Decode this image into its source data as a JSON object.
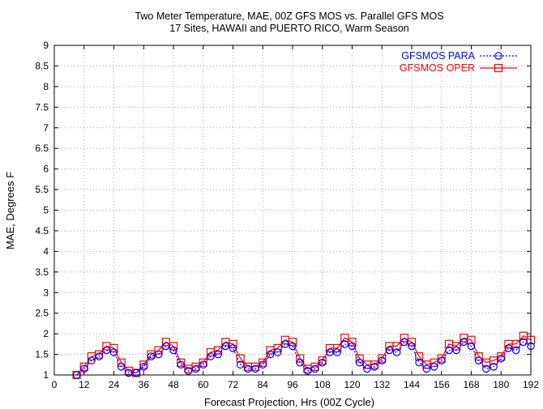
{
  "chart_data": {
    "type": "line",
    "title": "Two Meter Temperature, MAE, 00Z GFS MOS vs. Parallel GFS MOS",
    "subtitle": "17 Sites, HAWAII and PUERTO RICO, Warm Season",
    "xlabel": "Forecast Projection, Hrs (00Z Cycle)",
    "ylabel": "MAE, Degrees F",
    "xlim": [
      0,
      192
    ],
    "ylim": [
      1,
      9
    ],
    "xticks": [
      "0",
      "12",
      "24",
      "36",
      "48",
      "60",
      "72",
      "84",
      "96",
      "108",
      "120",
      "132",
      "144",
      "156",
      "168",
      "180",
      "192"
    ],
    "yticks": [
      "1",
      "1.5",
      "2",
      "2.5",
      "3",
      "3.5",
      "4",
      "4.5",
      "5",
      "5.5",
      "6",
      "6.5",
      "7",
      "7.5",
      "8",
      "8.5",
      "9"
    ],
    "grid": true,
    "legend_position": "top-right",
    "x": [
      9,
      12,
      15,
      18,
      21,
      24,
      27,
      30,
      33,
      36,
      39,
      42,
      45,
      48,
      51,
      54,
      57,
      60,
      63,
      66,
      69,
      72,
      75,
      78,
      81,
      84,
      87,
      90,
      93,
      96,
      99,
      102,
      105,
      108,
      111,
      114,
      117,
      120,
      123,
      126,
      129,
      132,
      135,
      138,
      141,
      144,
      147,
      150,
      153,
      156,
      159,
      162,
      165,
      168,
      171,
      174,
      177,
      180,
      183,
      186,
      189,
      192
    ],
    "series": [
      {
        "name": "GFSMOS PARA",
        "color": "#0000ff",
        "marker": "circle",
        "dash": true,
        "values": [
          1.0,
          1.15,
          1.35,
          1.45,
          1.6,
          1.55,
          1.2,
          1.05,
          1.05,
          1.2,
          1.45,
          1.5,
          1.7,
          1.6,
          1.25,
          1.1,
          1.15,
          1.25,
          1.45,
          1.5,
          1.7,
          1.65,
          1.25,
          1.15,
          1.15,
          1.25,
          1.5,
          1.55,
          1.75,
          1.7,
          1.3,
          1.1,
          1.15,
          1.3,
          1.55,
          1.55,
          1.75,
          1.7,
          1.3,
          1.15,
          1.2,
          1.35,
          1.6,
          1.55,
          1.8,
          1.7,
          1.3,
          1.15,
          1.2,
          1.35,
          1.6,
          1.6,
          1.8,
          1.7,
          1.35,
          1.15,
          1.2,
          1.4,
          1.65,
          1.6,
          1.8,
          1.7
        ]
      },
      {
        "name": "GFSMOS OPER",
        "color": "#ff0000",
        "marker": "square",
        "dash": false,
        "values": [
          1.0,
          1.2,
          1.45,
          1.5,
          1.7,
          1.65,
          1.3,
          1.1,
          1.05,
          1.25,
          1.5,
          1.6,
          1.8,
          1.7,
          1.3,
          1.15,
          1.2,
          1.3,
          1.55,
          1.6,
          1.8,
          1.75,
          1.4,
          1.2,
          1.2,
          1.3,
          1.6,
          1.65,
          1.85,
          1.8,
          1.4,
          1.15,
          1.2,
          1.35,
          1.65,
          1.65,
          1.9,
          1.8,
          1.4,
          1.25,
          1.25,
          1.4,
          1.7,
          1.7,
          1.9,
          1.8,
          1.45,
          1.25,
          1.3,
          1.4,
          1.75,
          1.7,
          1.9,
          1.85,
          1.45,
          1.3,
          1.35,
          1.45,
          1.75,
          1.75,
          1.95,
          1.85
        ]
      }
    ]
  }
}
